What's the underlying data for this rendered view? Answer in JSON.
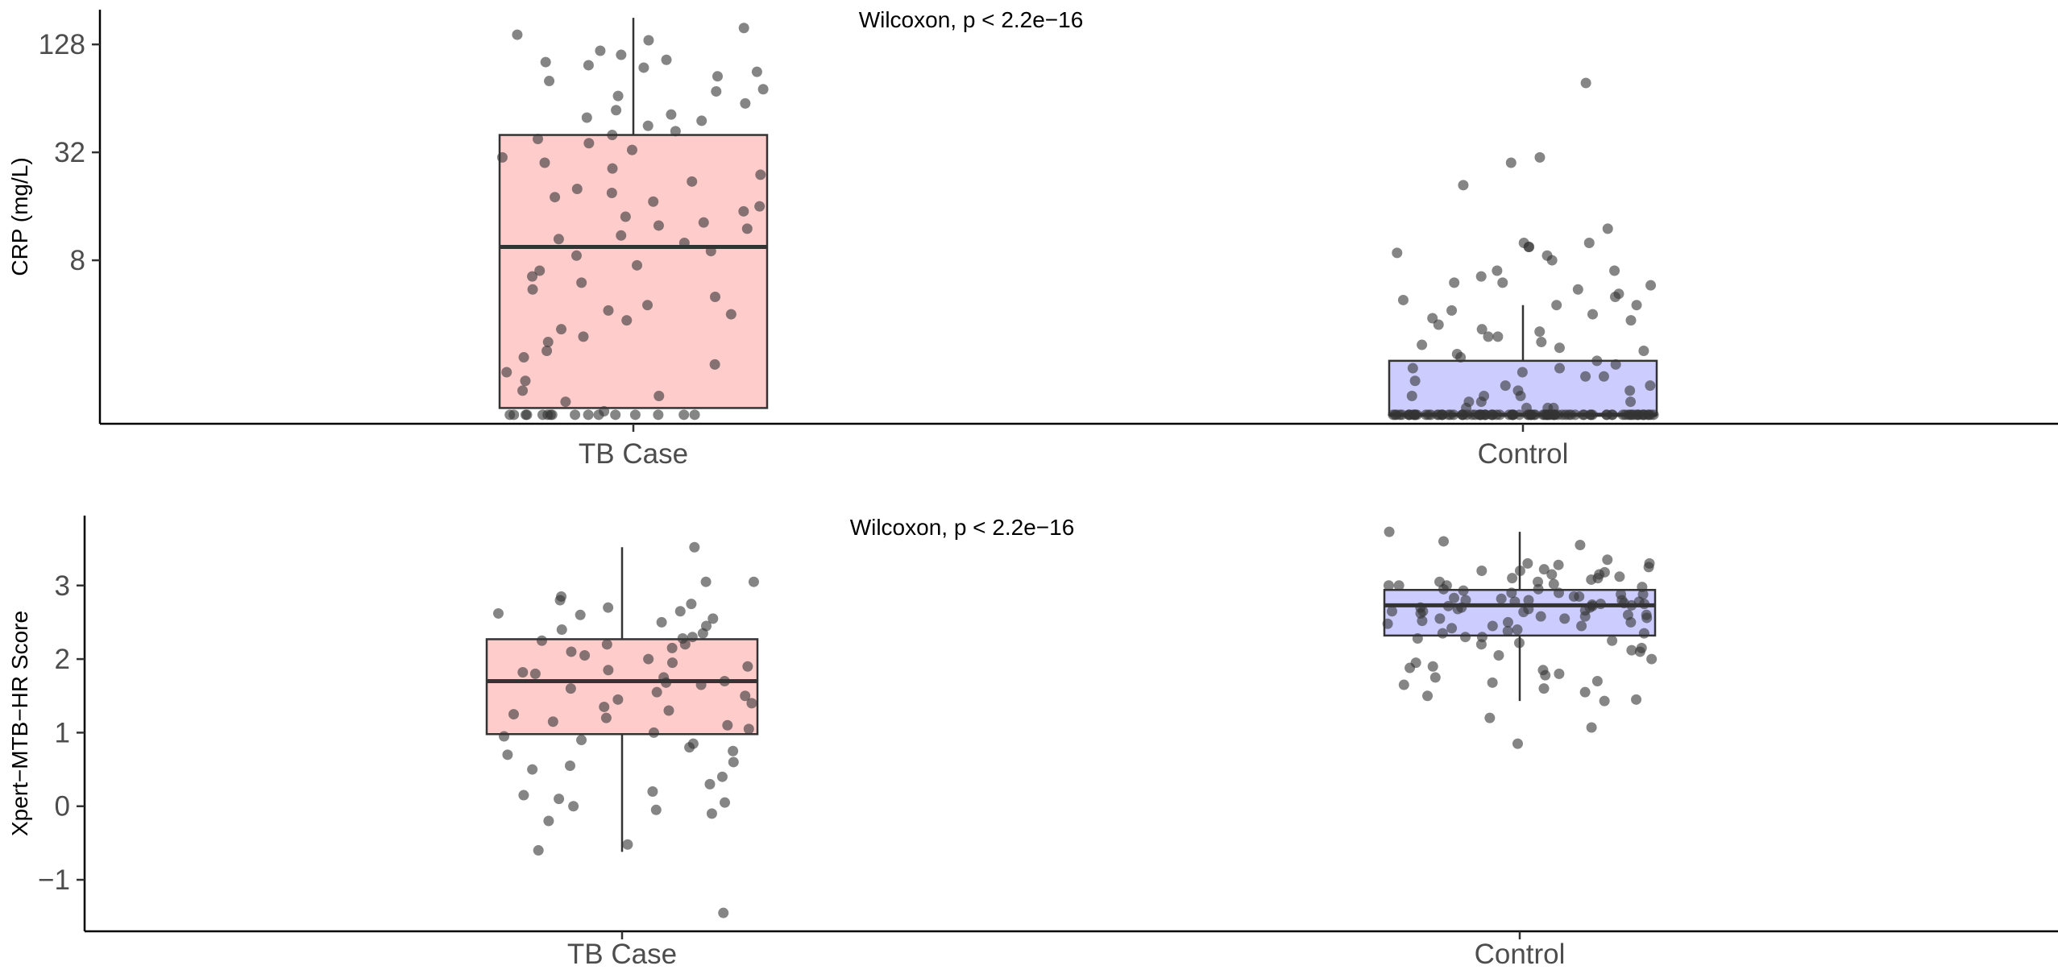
{
  "chart_data": [
    {
      "type": "box",
      "y_scale": "log2",
      "ylabel": "CRP (mg/L)",
      "xlabel": "",
      "annotation": "Wilcoxon, p < 2.2e−16",
      "categories": [
        "TB Case",
        "Control"
      ],
      "ylim": [
        0.98,
        200
      ],
      "yticks": [
        8,
        32,
        128
      ],
      "ytick_labels": [
        "8",
        "32",
        "128"
      ],
      "colors": {
        "TB Case": "#ffcccc",
        "Control": "#ccccff",
        "points": "#333333"
      },
      "grid": false,
      "legend": "none",
      "boxes": [
        {
          "category": "TB Case",
          "q1": 1.2,
          "median": 9.5,
          "q3": 40,
          "whisker_low": 1.2,
          "whisker_high": 180
        },
        {
          "category": "Control",
          "q1": 1.1,
          "median": 1.1,
          "q3": 2.2,
          "whisker_low": 1.1,
          "whisker_high": 4.5
        }
      ],
      "points": [
        {
          "category": "TB Case",
          "values": [
            158,
            145,
            135,
            118,
            112,
            105,
            102,
            98,
            95,
            90,
            85,
            80,
            72,
            70,
            66,
            60,
            55,
            52,
            50,
            48,
            45,
            42,
            40,
            38,
            36,
            33,
            30,
            28,
            26,
            24,
            22,
            20,
            19,
            18,
            17,
            16,
            15,
            14,
            13,
            12.5,
            12,
            11,
            10.5,
            10,
            9,
            8.5,
            7.5,
            7,
            6.5,
            6,
            5.5,
            5,
            4.5,
            4.2,
            4,
            3.7,
            3.3,
            3,
            2.8,
            2.5,
            2.3,
            2.1,
            1.9,
            1.7,
            1.5,
            1.4,
            1.3,
            1.15,
            1.1,
            1.1,
            1.1,
            1.1,
            1.1,
            1.1,
            1.1,
            1.1,
            1.1,
            1.1,
            1.1,
            1.1,
            1.1,
            1.1,
            1.1,
            1.1
          ]
        },
        {
          "category": "Control",
          "values": [
            78,
            30,
            28,
            21,
            12,
            10,
            10,
            9.5,
            9.5,
            8.8,
            8.5,
            8,
            7,
            7,
            6.5,
            6,
            6,
            5.8,
            5.5,
            5.2,
            5,
            4.8,
            4.5,
            4.5,
            4.2,
            4,
            3.8,
            3.7,
            3.5,
            3.3,
            3.2,
            3,
            3,
            2.8,
            2.7,
            2.6,
            2.5,
            2.4,
            2.3,
            2.2,
            2.1,
            2,
            2,
            1.9,
            1.8,
            1.8,
            1.7,
            1.6,
            1.6,
            1.5,
            1.5,
            1.4,
            1.4,
            1.4,
            1.3,
            1.3,
            1.3,
            1.2,
            1.2,
            1.2,
            1.2,
            1.1,
            1.1,
            1.1,
            1.1,
            1.1,
            1.1,
            1.1,
            1.1,
            1.1,
            1.1,
            1.1,
            1.1,
            1.1,
            1.1,
            1.1,
            1.1,
            1.1,
            1.1,
            1.1,
            1.1,
            1.1,
            1.1,
            1.1,
            1.1,
            1.1,
            1.1,
            1.1,
            1.1,
            1.1,
            1.1,
            1.1,
            1.1,
            1.1,
            1.1,
            1.1,
            1.1,
            1.1,
            1.1,
            1.1,
            1.1,
            1.1,
            1.1,
            1.1,
            1.1,
            1.1,
            1.1,
            1.1,
            1.1,
            1.1,
            1.1,
            1.1,
            1.1,
            1.1,
            1.1,
            1.1,
            1.1,
            1.1,
            1.1,
            1.1,
            1.1,
            1.1,
            1.1,
            1.1,
            1.1,
            1.1,
            1.1,
            1.1,
            1.1,
            1.1,
            1.1,
            1.1,
            1.1,
            1.1,
            1.1,
            1.1,
            1.1,
            1.1,
            1.1,
            1.1,
            1.1,
            1.1,
            1.1,
            1.1,
            1.1,
            1.1,
            1.1,
            1.1,
            1.1,
            1.1,
            1.1,
            1.1,
            1.1,
            1.1,
            1.1,
            1.1,
            1.1,
            1.1
          ]
        }
      ]
    },
    {
      "type": "box",
      "y_scale": "linear",
      "ylabel": "Xpert−MTB−HR Score",
      "xlabel": "",
      "annotation": "Wilcoxon, p < 2.2e−16",
      "categories": [
        "TB Case",
        "Control"
      ],
      "ylim": [
        -1.7,
        3.95
      ],
      "yticks": [
        -1,
        0,
        1,
        2,
        3
      ],
      "ytick_labels": [
        "−1",
        "0",
        "1",
        "2",
        "3"
      ],
      "colors": {
        "TB Case": "#ffcccc",
        "Control": "#ccccff",
        "points": "#333333"
      },
      "grid": false,
      "legend": "none",
      "boxes": [
        {
          "category": "TB Case",
          "q1": 0.98,
          "median": 1.7,
          "q3": 2.27,
          "whisker_low": -0.62,
          "whisker_high": 3.52
        },
        {
          "category": "Control",
          "q1": 2.32,
          "median": 2.73,
          "q3": 2.94,
          "whisker_low": 1.43,
          "whisker_high": 3.73
        }
      ],
      "points": [
        {
          "category": "TB Case",
          "values": [
            3.52,
            3.05,
            3.05,
            2.85,
            2.8,
            2.75,
            2.7,
            2.65,
            2.62,
            2.6,
            2.55,
            2.5,
            2.45,
            2.4,
            2.35,
            2.3,
            2.28,
            2.25,
            2.2,
            2.2,
            2.15,
            2.1,
            2.05,
            2.0,
            1.95,
            1.9,
            1.85,
            1.82,
            1.8,
            1.75,
            1.7,
            1.68,
            1.65,
            1.6,
            1.55,
            1.5,
            1.45,
            1.4,
            1.35,
            1.3,
            1.25,
            1.2,
            1.15,
            1.1,
            1.05,
            1.0,
            0.95,
            0.9,
            0.85,
            0.8,
            0.75,
            0.7,
            0.6,
            0.55,
            0.5,
            0.4,
            0.3,
            0.2,
            0.15,
            0.1,
            0.05,
            0.0,
            -0.05,
            -0.1,
            -0.2,
            -0.52,
            -0.6,
            -1.45
          ]
        },
        {
          "category": "Control",
          "values": [
            3.73,
            3.6,
            3.55,
            3.35,
            3.3,
            3.3,
            3.28,
            3.25,
            3.22,
            3.2,
            3.2,
            3.18,
            3.15,
            3.15,
            3.12,
            3.1,
            3.1,
            3.08,
            3.05,
            3.05,
            3.02,
            3.0,
            3.0,
            3.0,
            2.98,
            2.95,
            2.95,
            2.93,
            2.9,
            2.9,
            2.88,
            2.88,
            2.85,
            2.85,
            2.83,
            2.82,
            2.8,
            2.8,
            2.8,
            2.78,
            2.78,
            2.76,
            2.75,
            2.75,
            2.74,
            2.73,
            2.72,
            2.72,
            2.7,
            2.7,
            2.7,
            2.68,
            2.68,
            2.66,
            2.65,
            2.65,
            2.64,
            2.62,
            2.6,
            2.6,
            2.58,
            2.58,
            2.56,
            2.55,
            2.55,
            2.52,
            2.5,
            2.5,
            2.48,
            2.45,
            2.45,
            2.42,
            2.4,
            2.38,
            2.35,
            2.35,
            2.3,
            2.3,
            2.28,
            2.25,
            2.22,
            2.2,
            2.15,
            2.12,
            2.1,
            2.05,
            2.0,
            1.95,
            1.9,
            1.88,
            1.85,
            1.8,
            1.78,
            1.75,
            1.7,
            1.68,
            1.65,
            1.6,
            1.55,
            1.5,
            1.45,
            1.43,
            1.2,
            1.07,
            0.85
          ]
        }
      ]
    }
  ]
}
